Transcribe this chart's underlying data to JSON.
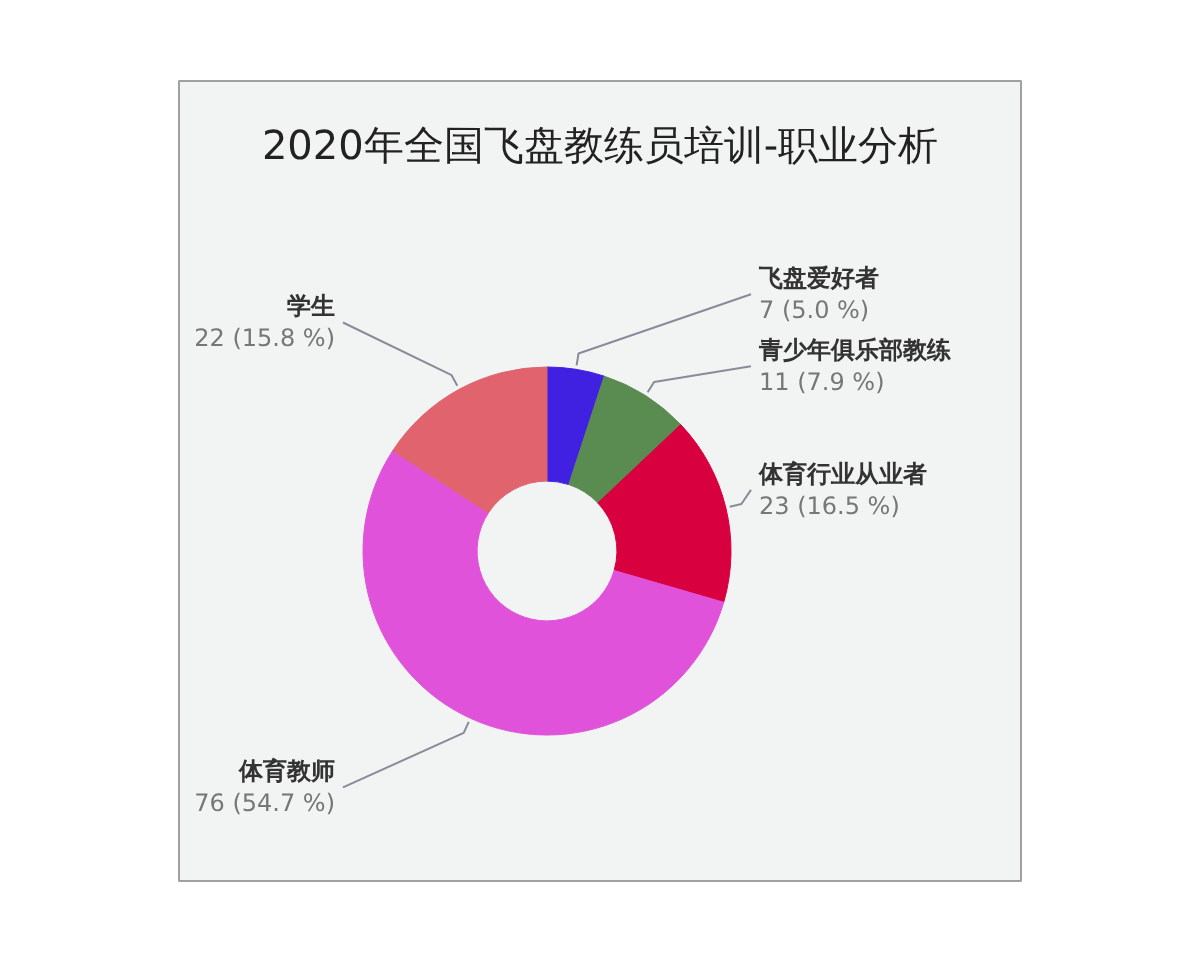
{
  "chart_data": {
    "type": "donut",
    "title": "2020年全国飞盘教练员培训-职业分析",
    "categories": [
      "飞盘爱好者",
      "青少年俱乐部教练",
      "体育行业从业者",
      "体育教师",
      "学生"
    ],
    "values": [
      7,
      11,
      23,
      76,
      22
    ],
    "colors": [
      "#4021e2",
      "#5a8c52",
      "#d8003e",
      "#e052da",
      "#e0636e"
    ],
    "value_labels": [
      "7 (5.0 %)",
      "11 (7.9 %)",
      "23 (16.5 %)",
      "76 (54.7 %)",
      "22 (15.8 %)"
    ]
  }
}
